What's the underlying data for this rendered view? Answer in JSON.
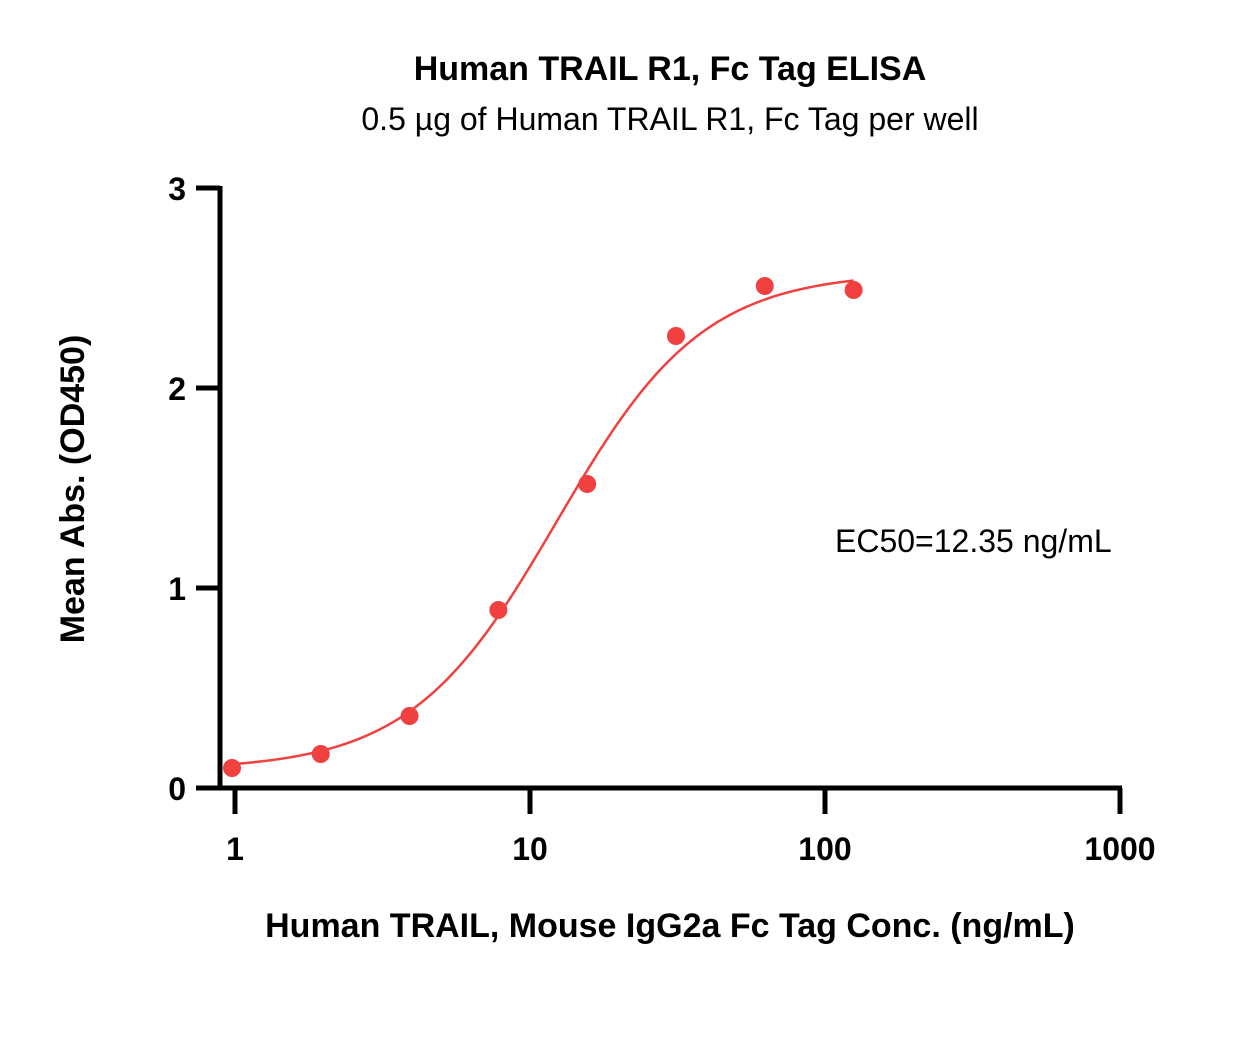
{
  "chart_data": {
    "type": "scatter",
    "title": "Human TRAIL R1, Fc Tag ELISA",
    "subtitle": "0.5 µg of Human TRAIL R1, Fc Tag per well",
    "xlabel": "Human TRAIL, Mouse IgG2a Fc Tag Conc. (ng/mL)",
    "ylabel": "Mean Abs. (OD450)",
    "xscale": "log",
    "xlim": [
      0.92,
      1000
    ],
    "ylim": [
      0,
      3
    ],
    "xticks": [
      1,
      10,
      100,
      1000
    ],
    "xtick_labels": [
      "1",
      "10",
      "100",
      "1000"
    ],
    "yticks": [
      0,
      1,
      2,
      3
    ],
    "ytick_labels": [
      "0",
      "1",
      "2",
      "3"
    ],
    "grid": false,
    "color": "#f04040",
    "series": [
      {
        "x": [
          0.977,
          1.953,
          3.906,
          7.813,
          15.625,
          31.25,
          62.5,
          125
        ],
        "y": [
          0.1,
          0.17,
          0.36,
          0.89,
          1.52,
          2.26,
          2.51,
          2.49
        ]
      }
    ],
    "fit": {
      "model": "4PL",
      "bottom": 0.09,
      "top": 2.58,
      "ec50": 12.35,
      "hill": 1.75,
      "x_range": [
        0.977,
        125
      ]
    },
    "annotation": "EC50=12.35 ng/mL"
  }
}
